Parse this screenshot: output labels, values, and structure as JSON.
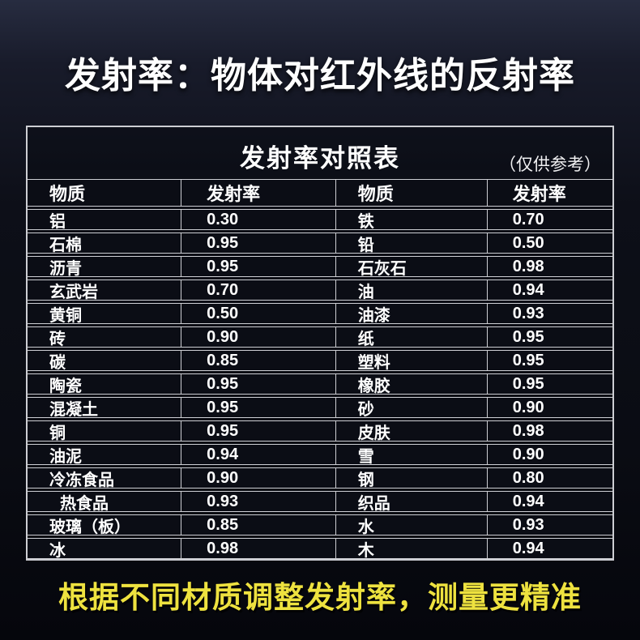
{
  "page": {
    "title": "发射率：物体对红外线的反射率",
    "footer": "根据不同材质调整发射率，测量更精准"
  },
  "table": {
    "title": "发射率对照表",
    "note": "（仅供参考）",
    "headers": [
      "物质",
      "发射率",
      "物质",
      "发射率"
    ],
    "rows": [
      {
        "m1": "铝",
        "v1": "0.30",
        "m2": "铁",
        "v2": "0.70"
      },
      {
        "m1": "石棉",
        "v1": "0.95",
        "m2": "铅",
        "v2": "0.50"
      },
      {
        "m1": "沥青",
        "v1": "0.95",
        "m2": "石灰石",
        "v2": "0.98"
      },
      {
        "m1": "玄武岩",
        "v1": "0.70",
        "m2": "油",
        "v2": "0.94"
      },
      {
        "m1": "黄铜",
        "v1": "0.50",
        "m2": "油漆",
        "v2": "0.93"
      },
      {
        "m1": "砖",
        "v1": "0.90",
        "m2": "纸",
        "v2": "0.95"
      },
      {
        "m1": "碳",
        "v1": "0.85",
        "m2": "塑料",
        "v2": "0.95"
      },
      {
        "m1": "陶瓷",
        "v1": "0.95",
        "m2": "橡胶",
        "v2": "0.95"
      },
      {
        "m1": "混凝土",
        "v1": "0.95",
        "m2": "砂",
        "v2": "0.90"
      },
      {
        "m1": "铜",
        "v1": "0.95",
        "m2": "皮肤",
        "v2": "0.98"
      },
      {
        "m1": "油泥",
        "v1": "0.94",
        "m2": "雪",
        "v2": "0.90"
      },
      {
        "m1": "冷冻食品",
        "v1": "0.90",
        "m2": "钢",
        "v2": "0.80"
      },
      {
        "m1": "热食品",
        "indent": true,
        "v1": "0.93",
        "m2": "织品",
        "v2": "0.94"
      },
      {
        "m1": "玻璃（板）",
        "v1": "0.85",
        "m2": "水",
        "v2": "0.93"
      },
      {
        "m1": "冰",
        "v1": "0.98",
        "m2": "木",
        "v2": "0.94"
      }
    ]
  },
  "colors": {
    "accent_yellow": "#eee23f",
    "border_light": "#cdced3",
    "cell_background": "#0b0d15",
    "text_white": "#ffffff"
  }
}
